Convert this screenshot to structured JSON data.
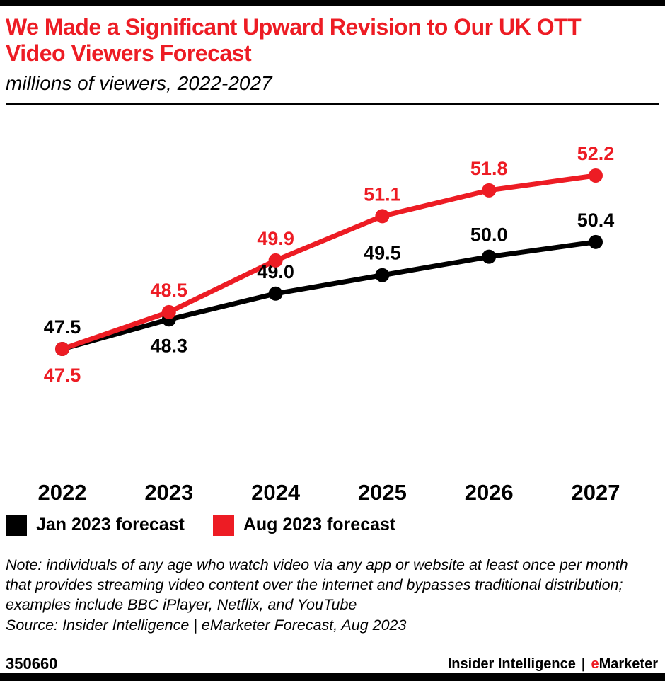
{
  "chart_data": {
    "type": "line",
    "title": "We Made a Significant Upward Revision to Our UK OTT Video Viewers Forecast",
    "subtitle": "millions of viewers, 2022-2027",
    "unit": "millions of viewers",
    "categories": [
      "2022",
      "2023",
      "2024",
      "2025",
      "2026",
      "2027"
    ],
    "series": [
      {
        "name": "Jan 2023 forecast",
        "color": "#000000",
        "values": [
          47.5,
          48.3,
          49.0,
          49.5,
          50.0,
          50.4
        ],
        "label_positions": [
          "above",
          "below",
          "above",
          "above",
          "above",
          "above"
        ]
      },
      {
        "name": "Aug 2023 forecast",
        "color": "#ed1c24",
        "values": [
          47.5,
          48.5,
          49.9,
          51.1,
          51.8,
          52.2
        ],
        "label_positions": [
          "below",
          "above",
          "above",
          "above",
          "above",
          "above"
        ]
      }
    ],
    "ylim": [
      47,
      53
    ],
    "y_axis_visible": false,
    "grid": false,
    "data_labels": true,
    "legend_position": "bottom-left"
  },
  "legend": {
    "items": [
      {
        "label": "Jan 2023 forecast",
        "color": "#000000"
      },
      {
        "label": "Aug 2023 forecast",
        "color": "#ed1c24"
      }
    ]
  },
  "notes": {
    "note": "Note: individuals of any age who watch video via any app or website at least once per month that provides streaming video content over the internet and bypasses traditional distribution; examples include BBC iPlayer, Netflix, and YouTube",
    "source": "Source: Insider Intelligence | eMarketer Forecast, Aug 2023"
  },
  "footer": {
    "chart_id": "350660",
    "brand_name": "Insider Intelligence",
    "brand_divider": "|",
    "brand_product_e": "e",
    "brand_product_rest": "Marketer"
  },
  "colors": {
    "accent_red": "#ed1c24",
    "black": "#000000"
  }
}
